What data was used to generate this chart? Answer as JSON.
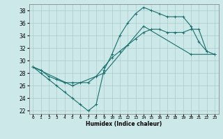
{
  "xlabel": "Humidex (Indice chaleur)",
  "background_color": "#cce8e8",
  "grid_color": "#aacccc",
  "line_color": "#1a6e6e",
  "xlim": [
    -0.5,
    23.5
  ],
  "ylim": [
    21.5,
    39.0
  ],
  "yticks": [
    22,
    24,
    26,
    28,
    30,
    32,
    34,
    36,
    38
  ],
  "xticks": [
    0,
    1,
    2,
    3,
    4,
    5,
    6,
    7,
    8,
    9,
    10,
    11,
    12,
    13,
    14,
    15,
    16,
    17,
    18,
    19,
    20,
    21,
    22,
    23
  ],
  "line1_x": [
    0,
    1,
    2,
    3,
    4,
    5,
    6,
    7,
    8,
    9,
    10,
    11,
    12,
    13,
    14,
    15,
    16,
    17,
    18,
    19,
    20,
    21,
    22
  ],
  "line1_y": [
    29,
    28,
    27,
    26,
    25,
    24,
    23,
    22,
    23,
    28.5,
    31,
    34,
    36,
    37.5,
    38.5,
    38,
    37.5,
    37,
    37,
    37,
    35.5,
    33,
    31.5
  ],
  "line2_x": [
    0,
    1,
    2,
    3,
    4,
    5,
    6,
    7,
    8,
    9,
    10,
    11,
    12,
    13,
    14,
    15,
    16,
    17,
    18,
    19,
    20,
    21,
    22,
    23
  ],
  "line2_y": [
    29,
    28.5,
    27.5,
    27.0,
    26.5,
    26.5,
    26.5,
    26.5,
    27.5,
    29,
    30.5,
    31.5,
    32.5,
    33.5,
    34.5,
    35,
    35,
    34.5,
    34.5,
    34.5,
    35,
    35,
    31.5,
    31
  ],
  "line3_x": [
    0,
    5,
    9,
    14,
    20,
    23
  ],
  "line3_y": [
    29,
    26,
    28,
    35.5,
    31,
    31
  ]
}
